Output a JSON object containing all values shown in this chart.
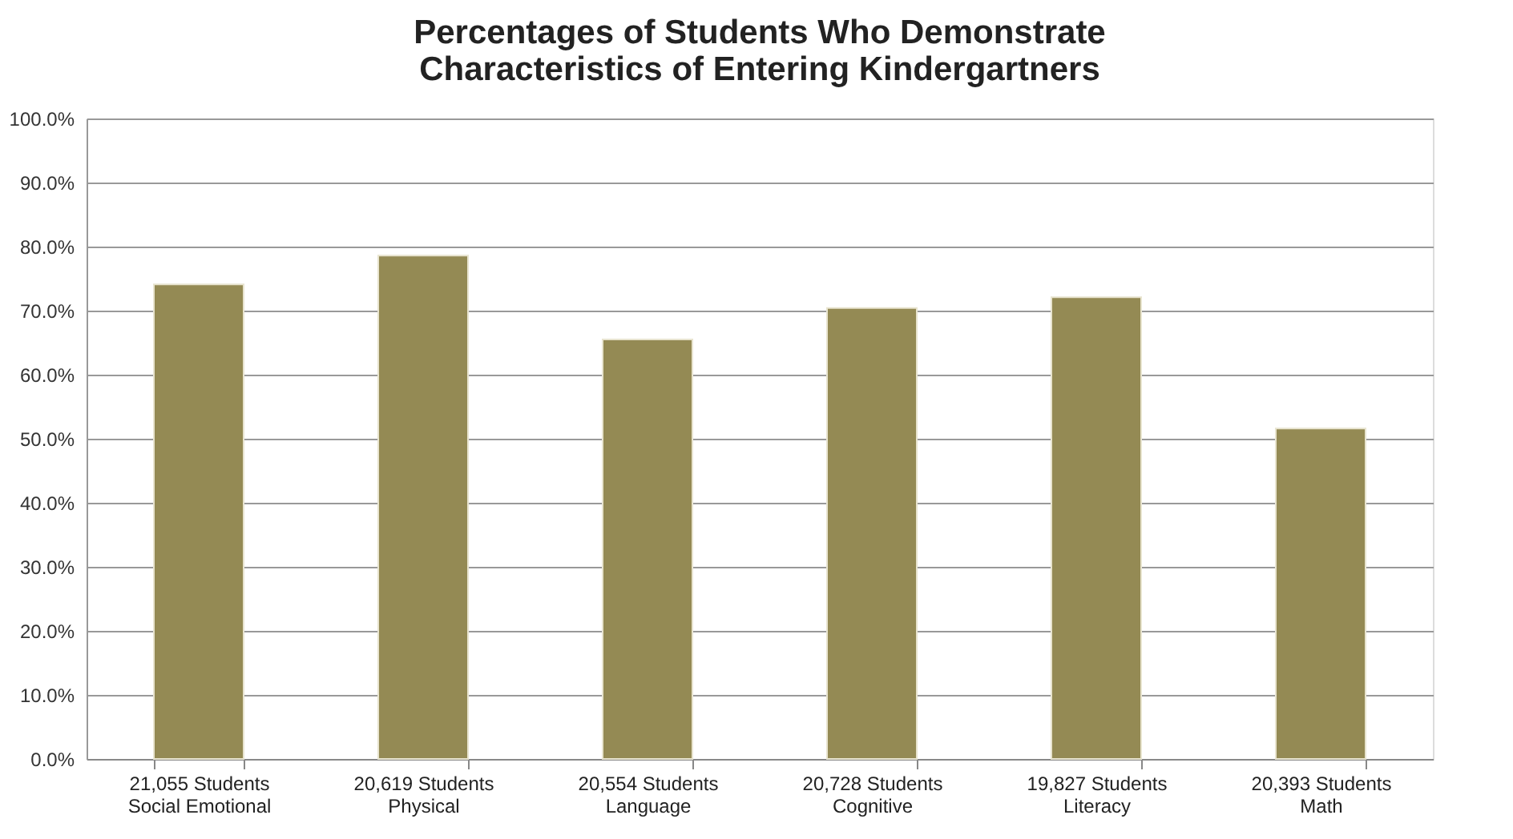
{
  "chart_data": {
    "type": "bar",
    "title": [
      "Percentages of Students Who Demonstrate",
      "Characteristics of Entering Kindergartners"
    ],
    "categories": [
      "21,055 Students\nSocial Emotional",
      "20,619 Students\nPhysical",
      "20,554 Students\nLanguage",
      "20,728 Students\nCognitive",
      "19,827 Students\nLiteracy",
      "20,393 Students\nMath"
    ],
    "values": [
      74.1,
      78.6,
      65.5,
      70.4,
      72.1,
      51.6
    ],
    "color": "#948a54",
    "ylim": [
      0,
      100
    ],
    "yticks": [
      {
        "value": 0,
        "label": "0.0%"
      },
      {
        "value": 10,
        "label": "10.0%"
      },
      {
        "value": 20,
        "label": "20.0%"
      },
      {
        "value": 30,
        "label": "30.0%"
      },
      {
        "value": 40,
        "label": "40.0%"
      },
      {
        "value": 50,
        "label": "50.0%"
      },
      {
        "value": 60,
        "label": "60.0%"
      },
      {
        "value": 70,
        "label": "70.0%"
      },
      {
        "value": 80,
        "label": "80.0%"
      },
      {
        "value": 90,
        "label": "90.0%"
      },
      {
        "value": 100,
        "label": "100.0%"
      }
    ],
    "grid": "y"
  }
}
